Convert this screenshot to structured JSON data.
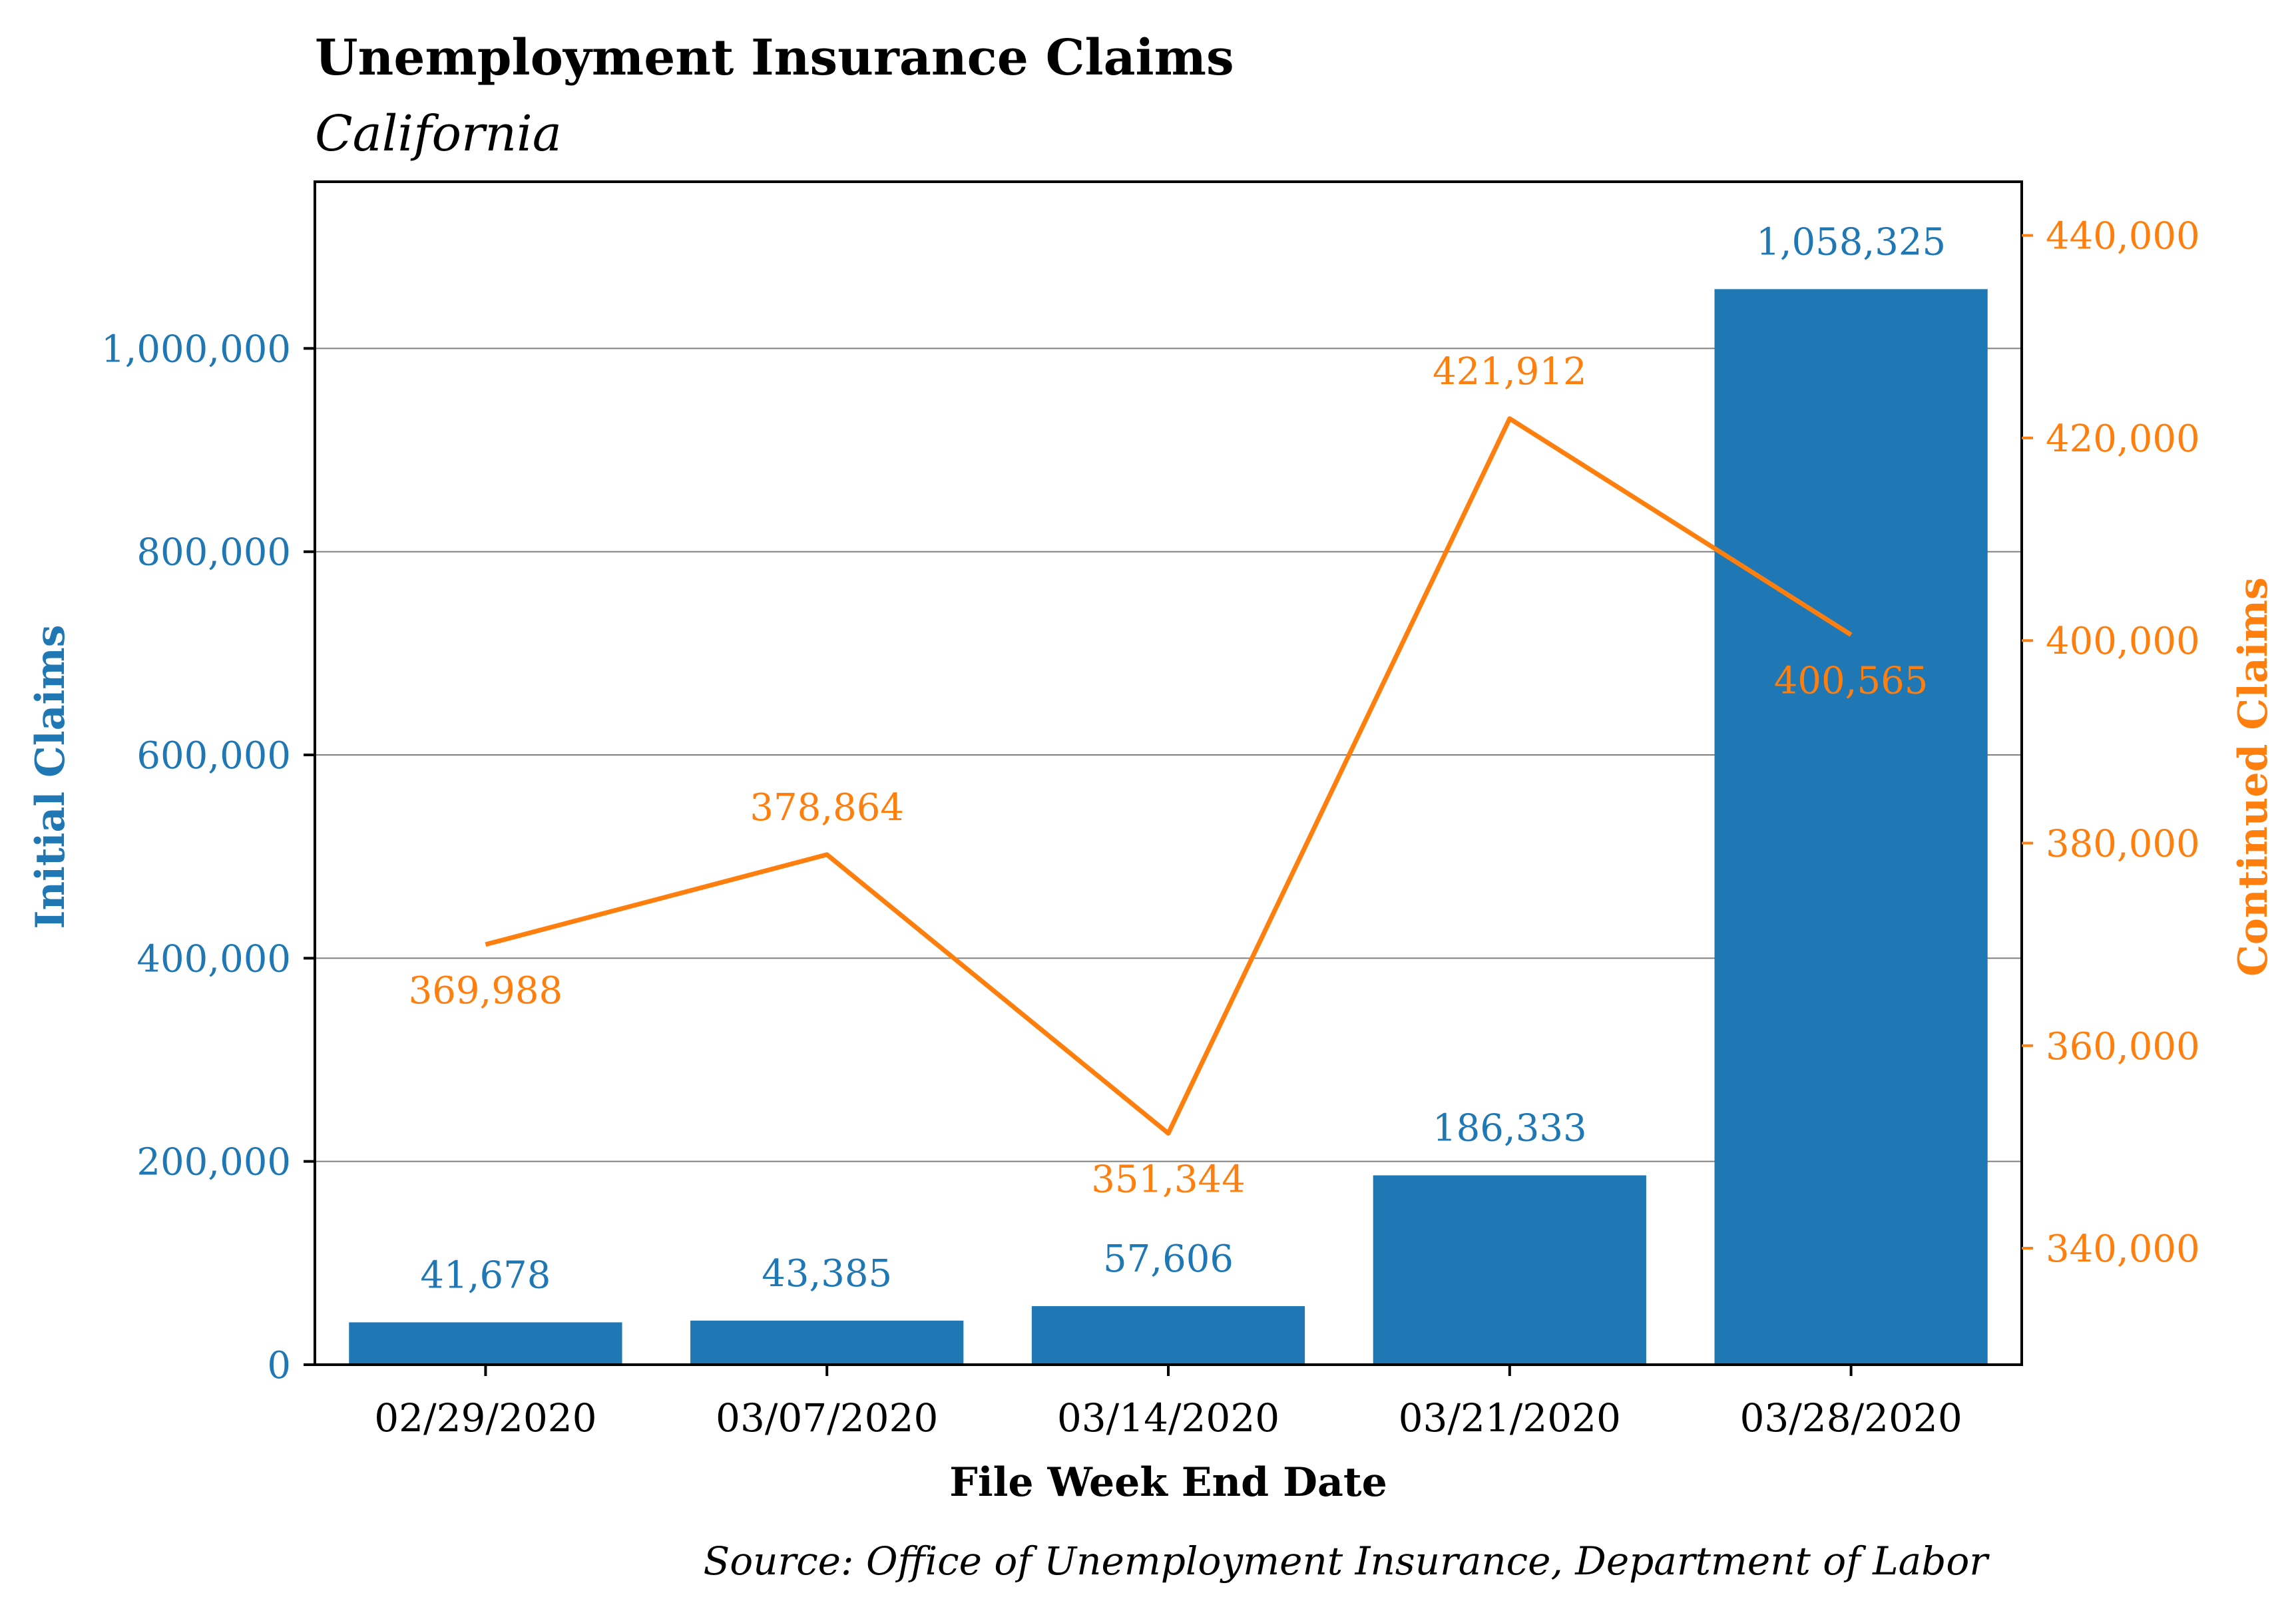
{
  "chart_data": {
    "type": "bar",
    "title": "Unemployment Insurance Claims",
    "subtitle": "California",
    "xlabel": "File Week End Date",
    "source": "Source: Office of Unemployment Insurance, Department of Labor",
    "categories": [
      "02/29/2020",
      "03/07/2020",
      "03/14/2020",
      "03/21/2020",
      "03/28/2020"
    ],
    "series": [
      {
        "name": "Initial Claims",
        "type": "bar",
        "axis": "left",
        "color": "#1f77b4",
        "values": [
          41678,
          43385,
          57606,
          186333,
          1058325
        ],
        "labels": [
          "41,678",
          "43,385",
          "57,606",
          "186,333",
          "1,058,325"
        ]
      },
      {
        "name": "Continued Claims",
        "type": "line",
        "axis": "right",
        "color": "#ff7f0e",
        "values": [
          369988,
          378864,
          351344,
          421912,
          400565
        ],
        "labels": [
          "369,988",
          "378,864",
          "351,344",
          "421,912",
          "400,565"
        ]
      }
    ],
    "y_left": {
      "label": "Initial Claims",
      "ylim": [
        0,
        1164000
      ],
      "ticks": [
        0,
        200000,
        400000,
        600000,
        800000,
        1000000
      ],
      "tick_labels": [
        "0",
        "200,000",
        "400,000",
        "600,000",
        "800,000",
        "1,000,000"
      ]
    },
    "y_right": {
      "label": "Continued Claims",
      "ylim": [
        328500,
        445300
      ],
      "ticks": [
        340000,
        360000,
        380000,
        400000,
        420000,
        440000
      ],
      "tick_labels": [
        "340,000",
        "360,000",
        "380,000",
        "400,000",
        "420,000",
        "440,000"
      ]
    },
    "grid": "horizontal-left",
    "legend": "none"
  }
}
